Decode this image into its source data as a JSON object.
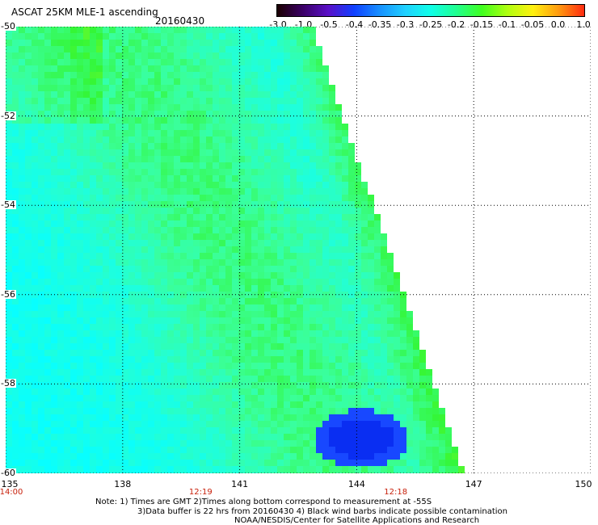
{
  "header": {
    "title": "ASCAT 25KM MLE-1 ascending",
    "date": "20160430"
  },
  "colorbar": {
    "labels": [
      "-3.0",
      "-1.0",
      "-0.5",
      "-0.4",
      "-0.35",
      "-0.3",
      "-0.25",
      "-0.2",
      "-0.15",
      "-0.1",
      "-0.05",
      "0.0",
      "1.0"
    ],
    "colors": [
      "#1a0000",
      "#3a0066",
      "#5a10c8",
      "#1040ff",
      "#1890ff",
      "#20d0ff",
      "#10ffe8",
      "#20ff90",
      "#40ff20",
      "#b0ff10",
      "#fff010",
      "#ff9a10",
      "#ff2a10"
    ]
  },
  "map": {
    "lon_range": [
      135,
      150
    ],
    "lat_range": [
      -60,
      -50
    ],
    "lat_labels": [
      "-50",
      "-52",
      "-54",
      "-56",
      "-58",
      "-60"
    ],
    "lon_labels": [
      "135",
      "138",
      "141",
      "144",
      "147",
      "150"
    ],
    "time_labels": [
      {
        "lon": 135,
        "text": "14:00"
      },
      {
        "lon": 140,
        "text": "12:19"
      },
      {
        "lon": 145,
        "text": "12:18"
      }
    ],
    "colors": {
      "cyan": "#08ffff",
      "aqua": "#22ffd6",
      "mint": "#3aff9a",
      "green": "#34f636",
      "lime": "#a8ff22",
      "yellow": "#f8f820",
      "orange": "#ff9820",
      "blue": "#1848ff",
      "deepblue": "#0a2ef2",
      "navy": "#0a10c0"
    }
  },
  "notes": [
    "Note: 1) Times are GMT 2)Times along bottom correspond to measurement at -55S",
    "3)Data buffer is 22 hrs from 20160430 4) Black wind barbs indicate possible contamination",
    "NOAA/NESDIS/Center for Satellite Applications and Research"
  ]
}
